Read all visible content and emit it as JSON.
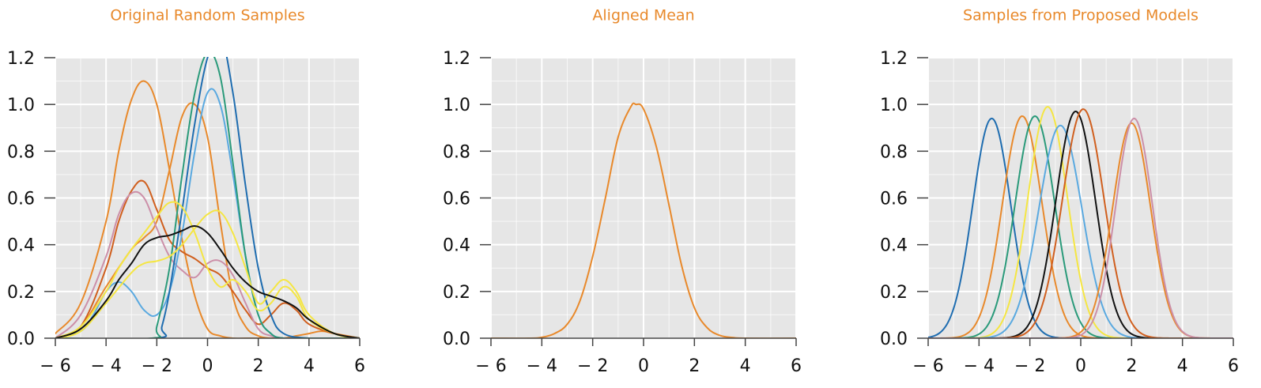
{
  "chart_data": [
    {
      "type": "line",
      "title": "Original Random Samples",
      "xlabel": "",
      "ylabel": "",
      "xlim": [
        -6,
        6
      ],
      "ylim": [
        0,
        1.2
      ],
      "xticks": [
        -6,
        -4,
        -2,
        0,
        2,
        4,
        6
      ],
      "xtick_labels": [
        "− 6",
        "− 4",
        "− 2",
        "0",
        "2",
        "4",
        "6"
      ],
      "yticks": [
        0,
        0.2,
        0.4,
        0.6,
        0.8,
        1.0,
        1.2
      ],
      "ytick_labels": [
        "0.0",
        "0.2",
        "0.4",
        "0.6",
        "0.8",
        "1.0",
        "1.2"
      ],
      "grid": true,
      "series": [
        {
          "color": "#e8892b",
          "x": [
            -6,
            -5,
            -4,
            -3.5,
            -3,
            -2.5,
            -2,
            -1.5,
            -1,
            -0.5,
            0,
            0.5,
            1,
            1.5,
            2,
            2.5,
            3,
            4,
            5,
            6
          ],
          "y": [
            0.02,
            0.15,
            0.5,
            0.8,
            1.02,
            1.1,
            1.0,
            0.72,
            0.42,
            0.18,
            0.04,
            0.01,
            0,
            0,
            0,
            0,
            0,
            0,
            0,
            0
          ]
        },
        {
          "color": "#e8892b",
          "x": [
            -6,
            -5,
            -4,
            -3,
            -2.5,
            -2,
            -1.5,
            -1,
            -0.5,
            0,
            0.5,
            1,
            1.5,
            2,
            2.5,
            3,
            3.5,
            4,
            4.5,
            5,
            6
          ],
          "y": [
            0,
            0.05,
            0.22,
            0.38,
            0.43,
            0.5,
            0.72,
            0.95,
            1.0,
            0.86,
            0.5,
            0.18,
            0.05,
            0.01,
            0,
            0,
            0.01,
            0.02,
            0.03,
            0.02,
            0
          ]
        },
        {
          "color": "#d05f1e",
          "x": [
            -6,
            -5,
            -4,
            -3.5,
            -3,
            -2.5,
            -2,
            -1.5,
            -1,
            -0.5,
            0,
            0.5,
            1,
            1.5,
            2,
            2.5,
            3,
            3.5,
            4,
            5,
            6
          ],
          "y": [
            0,
            0.05,
            0.3,
            0.5,
            0.63,
            0.67,
            0.55,
            0.42,
            0.37,
            0.34,
            0.3,
            0.27,
            0.2,
            0.12,
            0.06,
            0.1,
            0.15,
            0.12,
            0.06,
            0.02,
            0
          ]
        },
        {
          "color": "#cc8fa8",
          "x": [
            -6,
            -5,
            -4,
            -3.5,
            -3,
            -2.5,
            -2,
            -1.5,
            -1,
            -0.5,
            0,
            0.5,
            1,
            1.5,
            2,
            2.5,
            3,
            4,
            5,
            6
          ],
          "y": [
            0,
            0.1,
            0.35,
            0.53,
            0.62,
            0.6,
            0.47,
            0.35,
            0.29,
            0.26,
            0.32,
            0.33,
            0.27,
            0.15,
            0.04,
            0.01,
            0,
            0,
            0,
            0
          ]
        },
        {
          "color": "#5aa9e0",
          "x": [
            -6,
            -5,
            -4.5,
            -4,
            -3.5,
            -3,
            -2.5,
            -2,
            -1.5,
            -1,
            -0.5,
            0,
            0.5,
            1,
            1.5,
            2,
            2.5,
            3,
            4,
            5,
            6
          ],
          "y": [
            0,
            0.03,
            0.1,
            0.2,
            0.24,
            0.2,
            0.12,
            0.1,
            0.2,
            0.45,
            0.8,
            1.05,
            1.0,
            0.7,
            0.35,
            0.1,
            0.02,
            0,
            0,
            0,
            0
          ]
        },
        {
          "color": "#1f6db0",
          "x": [
            -6,
            -2,
            -1.8,
            -1.5,
            -1,
            -0.5,
            0,
            0.5,
            1,
            1.5,
            2,
            2.5,
            3,
            4,
            5,
            6
          ],
          "y": [
            0,
            0,
            0.05,
            0.2,
            0.55,
            0.92,
            1.2,
            1.3,
            1.05,
            0.65,
            0.3,
            0.1,
            0.02,
            0,
            0,
            0
          ]
        },
        {
          "color": "#2a9a7a",
          "x": [
            -6,
            -2.2,
            -2,
            -1.5,
            -1,
            -0.5,
            0,
            0.5,
            1,
            1.5,
            2,
            2.5,
            3,
            4,
            5,
            6
          ],
          "y": [
            0,
            0,
            0.05,
            0.3,
            0.7,
            1.05,
            1.22,
            1.12,
            0.75,
            0.35,
            0.1,
            0.02,
            0,
            0,
            0,
            0
          ]
        },
        {
          "color": "#f5e642",
          "x": [
            -6,
            -5,
            -4,
            -3.5,
            -3,
            -2.5,
            -2,
            -1.5,
            -1,
            -0.5,
            0,
            0.5,
            1,
            1.5,
            2,
            2.5,
            3,
            3.5,
            4,
            5,
            6
          ],
          "y": [
            0,
            0.05,
            0.2,
            0.3,
            0.38,
            0.45,
            0.52,
            0.58,
            0.56,
            0.45,
            0.3,
            0.22,
            0.25,
            0.2,
            0.12,
            0.15,
            0.22,
            0.18,
            0.08,
            0.02,
            0
          ]
        },
        {
          "color": "#f5e642",
          "x": [
            -6,
            -5,
            -4,
            -3,
            -2.5,
            -2,
            -1.5,
            -1,
            -0.5,
            0,
            0.5,
            1,
            1.5,
            2,
            2.5,
            3,
            3.5,
            4,
            5,
            6
          ],
          "y": [
            0,
            0.03,
            0.15,
            0.28,
            0.32,
            0.33,
            0.35,
            0.4,
            0.47,
            0.53,
            0.54,
            0.45,
            0.3,
            0.15,
            0.2,
            0.25,
            0.2,
            0.1,
            0.02,
            0
          ]
        },
        {
          "color": "#111111",
          "x": [
            -6,
            -5,
            -4,
            -3.5,
            -3,
            -2.5,
            -2,
            -1.5,
            -1,
            -0.5,
            0,
            0.5,
            1,
            1.5,
            2,
            2.5,
            3,
            3.5,
            4,
            5,
            6
          ],
          "y": [
            0,
            0.04,
            0.16,
            0.25,
            0.32,
            0.4,
            0.43,
            0.44,
            0.46,
            0.48,
            0.45,
            0.38,
            0.3,
            0.24,
            0.2,
            0.18,
            0.16,
            0.13,
            0.08,
            0.02,
            0
          ]
        }
      ]
    },
    {
      "type": "line",
      "title": "Aligned Mean",
      "xlabel": "",
      "ylabel": "",
      "xlim": [
        -6,
        6
      ],
      "ylim": [
        0,
        1.2
      ],
      "xticks": [
        -6,
        -4,
        -2,
        0,
        2,
        4,
        6
      ],
      "xtick_labels": [
        "− 6",
        "− 4",
        "− 2",
        "0",
        "2",
        "4",
        "6"
      ],
      "yticks": [
        0,
        0.2,
        0.4,
        0.6,
        0.8,
        1.0,
        1.2
      ],
      "ytick_labels": [
        "0.0",
        "0.2",
        "0.4",
        "0.6",
        "0.8",
        "1.0",
        "1.2"
      ],
      "grid": true,
      "series": [
        {
          "color": "#e8892b",
          "x": [
            -6,
            -4.5,
            -4,
            -3.5,
            -3,
            -2.5,
            -2,
            -1.5,
            -1,
            -0.5,
            -0.3,
            0,
            0.5,
            1,
            1.5,
            2,
            2.5,
            3,
            3.5,
            4,
            6
          ],
          "y": [
            0,
            0,
            0.004,
            0.02,
            0.06,
            0.16,
            0.35,
            0.6,
            0.86,
            0.99,
            1.0,
            0.98,
            0.82,
            0.57,
            0.31,
            0.13,
            0.045,
            0.012,
            0.003,
            0,
            0
          ]
        }
      ]
    },
    {
      "type": "line",
      "title": "Samples from Proposed Models",
      "xlabel": "",
      "ylabel": "",
      "xlim": [
        -6,
        6
      ],
      "ylim": [
        0,
        1.2
      ],
      "xticks": [
        -6,
        -4,
        -2,
        0,
        2,
        4,
        6
      ],
      "xtick_labels": [
        "− 6",
        "− 4",
        "− 2",
        "0",
        "2",
        "4",
        "6"
      ],
      "yticks": [
        0,
        0.2,
        0.4,
        0.6,
        0.8,
        1.0,
        1.2
      ],
      "ytick_labels": [
        "0.0",
        "0.2",
        "0.4",
        "0.6",
        "0.8",
        "1.0",
        "1.2"
      ],
      "grid": true,
      "series": [
        {
          "color": "#1f6db0",
          "mean": -3.5,
          "peak": 0.94,
          "sd": 0.75
        },
        {
          "color": "#e8892b",
          "mean": -2.3,
          "peak": 0.95,
          "sd": 0.78
        },
        {
          "color": "#2a9a7a",
          "mean": -1.8,
          "peak": 0.95,
          "sd": 0.78
        },
        {
          "color": "#f5e642",
          "mean": -1.3,
          "peak": 0.99,
          "sd": 0.78
        },
        {
          "color": "#5aa9e0",
          "mean": -0.8,
          "peak": 0.91,
          "sd": 0.85
        },
        {
          "color": "#111111",
          "mean": -0.2,
          "peak": 0.97,
          "sd": 0.78
        },
        {
          "color": "#d05f1e",
          "mean": 0.1,
          "peak": 0.98,
          "sd": 0.82
        },
        {
          "color": "#e8892b",
          "mean": 2.0,
          "peak": 0.92,
          "sd": 0.75
        },
        {
          "color": "#cc8fa8",
          "mean": 2.1,
          "peak": 0.94,
          "sd": 0.72
        }
      ]
    }
  ]
}
